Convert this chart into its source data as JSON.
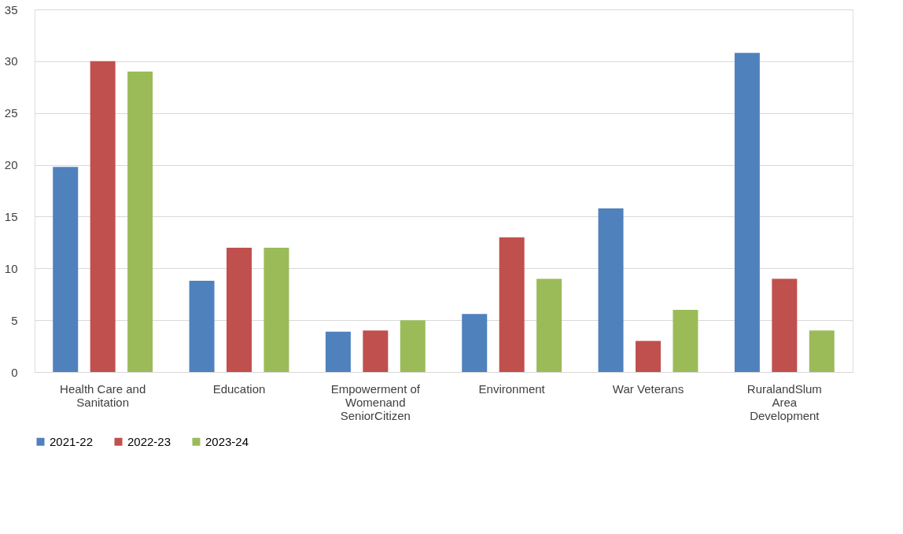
{
  "chart_data": {
    "type": "bar",
    "categories": [
      "Health Care and Sanitation",
      "Education",
      "Empowerment of Womenand SeniorCitizen",
      "Environment",
      "War Veterans",
      "RuralandSlum Area Development"
    ],
    "series": [
      {
        "name": "2021-22",
        "color": "#4f81bd",
        "values": [
          19.8,
          8.8,
          3.9,
          5.6,
          15.8,
          30.8
        ]
      },
      {
        "name": "2022-23",
        "color": "#c0504d",
        "values": [
          30,
          12,
          4,
          13,
          3,
          9
        ]
      },
      {
        "name": "2023-24",
        "color": "#9bbb59",
        "values": [
          29,
          12,
          5,
          9,
          6,
          4
        ]
      }
    ],
    "ylim": [
      0,
      35
    ],
    "yticks": [
      0,
      5,
      10,
      15,
      20,
      25,
      30,
      35
    ],
    "grid": "y",
    "legend": "bottom"
  }
}
